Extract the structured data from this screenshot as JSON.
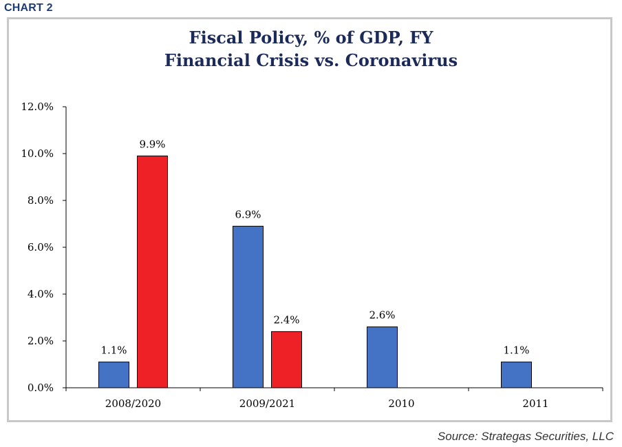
{
  "header": {
    "chart_label": "CHART 2"
  },
  "footer": {
    "source": "Source: Strategas Securities, LLC"
  },
  "colors": {
    "series_blue": "#4472c4",
    "series_red": "#ee2127",
    "title": "#1c2a5a"
  },
  "chart_data": {
    "type": "bar",
    "title": "Fiscal Policy, % of GDP, FY",
    "subtitle": "Financial Crisis vs. Coronavirus",
    "xlabel": "",
    "ylabel": "",
    "categories": [
      "2008/2020",
      "2009/2021",
      "2010",
      "2011"
    ],
    "series": [
      {
        "color": "#4472c4",
        "values": [
          1.1,
          6.9,
          2.6,
          1.1
        ],
        "labels": [
          "1.1%",
          "6.9%",
          "2.6%",
          "1.1%"
        ]
      },
      {
        "color": "#ee2127",
        "values": [
          9.9,
          2.4,
          null,
          null
        ],
        "labels": [
          "9.9%",
          "2.4%",
          null,
          null
        ]
      }
    ],
    "ylim": [
      0,
      12
    ],
    "yticks": [
      0,
      2,
      4,
      6,
      8,
      10,
      12
    ],
    "ytick_labels": [
      "0.0%",
      "2.0%",
      "4.0%",
      "6.0%",
      "8.0%",
      "10.0%",
      "12.0%"
    ],
    "grid": false,
    "legend": "none"
  }
}
